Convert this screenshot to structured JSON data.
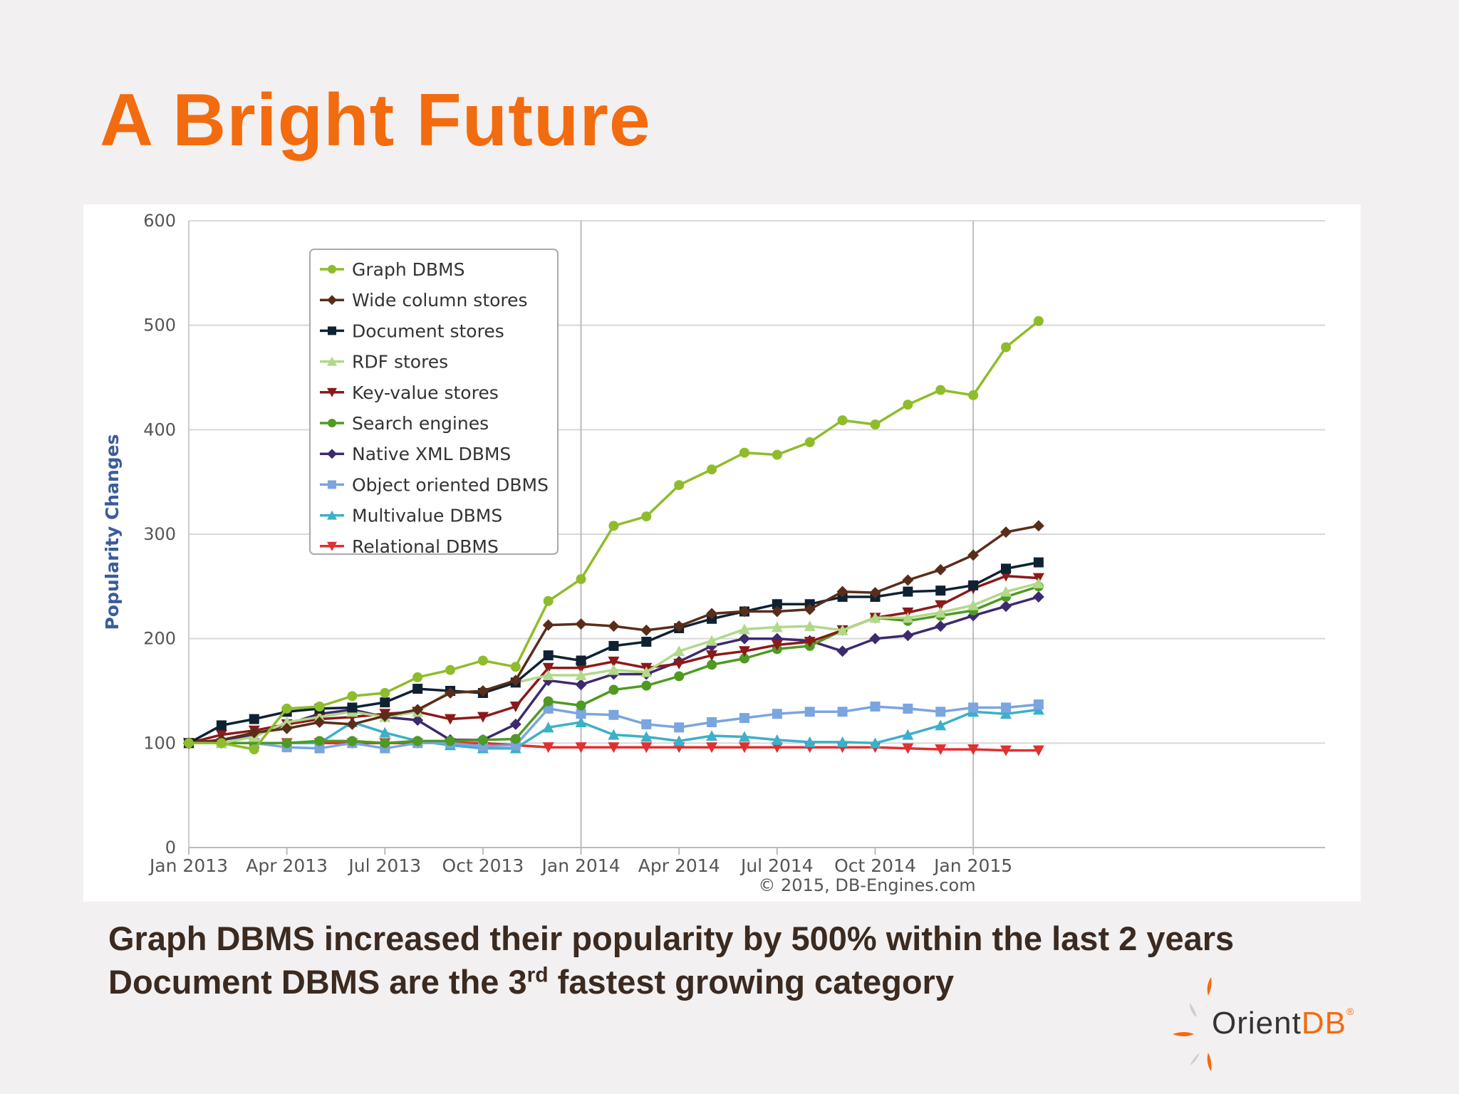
{
  "title": "A Bright Future",
  "captions": {
    "line1": "Graph DBMS increased their popularity by 500% within the last 2 years",
    "line2_before": "Document DBMS are the 3",
    "line2_sup": "rd",
    "line2_after": " fastest growing category"
  },
  "logo": {
    "text_main": "Orient",
    "text_accent": "DB",
    "mark": "®"
  },
  "chart_data": {
    "type": "line",
    "ylabel": "Popularity Changes",
    "ylim": [
      0,
      600
    ],
    "yticks": [
      0,
      100,
      200,
      300,
      400,
      500,
      600
    ],
    "xlim": [
      0,
      26
    ],
    "xtick_positions": [
      0,
      3,
      6,
      9,
      12,
      15,
      18,
      21,
      24
    ],
    "xtick_labels": [
      "Jan 2013",
      "Apr 2013",
      "Jul 2013",
      "Oct 2013",
      "Jan 2014",
      "Apr 2014",
      "Jul 2014",
      "Oct 2014",
      "Jan 2015"
    ],
    "gridlines_vertical_at": [
      12,
      24
    ],
    "credit": "© 2015, DB-Engines.com",
    "legend_position": "top-left",
    "x": [
      0,
      1,
      2,
      3,
      4,
      5,
      6,
      7,
      8,
      9,
      10,
      11,
      12,
      13,
      14,
      15,
      16,
      17,
      18,
      19,
      20,
      21,
      22,
      23,
      24,
      25,
      26
    ],
    "series": [
      {
        "name": "Graph DBMS",
        "color": "#8fbc2b",
        "marker": "circle",
        "values": [
          100,
          100,
          94,
          133,
          135,
          145,
          148,
          163,
          170,
          179,
          173,
          236,
          257,
          308,
          317,
          347,
          362,
          378,
          376,
          388,
          409,
          405,
          424,
          438,
          433,
          479,
          504
        ]
      },
      {
        "name": "Wide column stores",
        "color": "#5a2d1a",
        "marker": "diamond",
        "values": [
          100,
          103,
          110,
          114,
          120,
          118,
          126,
          132,
          148,
          150,
          160,
          213,
          214,
          212,
          208,
          212,
          224,
          226,
          226,
          228,
          245,
          244,
          256,
          266,
          280,
          302,
          308
        ]
      },
      {
        "name": "Document stores",
        "color": "#0f2233",
        "marker": "square",
        "values": [
          100,
          117,
          123,
          130,
          133,
          134,
          139,
          152,
          150,
          148,
          158,
          184,
          179,
          193,
          197,
          210,
          219,
          226,
          233,
          233,
          240,
          240,
          245,
          246,
          251,
          267,
          273
        ]
      },
      {
        "name": "RDF stores",
        "color": "#b2d889",
        "marker": "triangle",
        "values": [
          100,
          100,
          106,
          120,
          125,
          130,
          125,
          130,
          150,
          148,
          158,
          165,
          165,
          170,
          168,
          188,
          198,
          209,
          211,
          212,
          208,
          220,
          220,
          225,
          232,
          245,
          253
        ]
      },
      {
        "name": "Key-value stores",
        "color": "#8b1a1a",
        "marker": "triangle-down",
        "values": [
          100,
          108,
          112,
          118,
          123,
          125,
          128,
          130,
          123,
          125,
          135,
          172,
          172,
          178,
          172,
          176,
          184,
          188,
          194,
          197,
          208,
          220,
          225,
          232,
          248,
          260,
          258
        ]
      },
      {
        "name": "Search engines",
        "color": "#4e9a22",
        "marker": "circle",
        "values": [
          100,
          100,
          100,
          100,
          102,
          102,
          100,
          102,
          102,
          103,
          104,
          140,
          136,
          151,
          155,
          164,
          175,
          181,
          190,
          193,
          208,
          220,
          217,
          222,
          227,
          240,
          250
        ]
      },
      {
        "name": "Native XML DBMS",
        "color": "#3d2a6e",
        "marker": "diamond",
        "values": [
          100,
          103,
          108,
          118,
          128,
          132,
          125,
          122,
          103,
          103,
          118,
          160,
          156,
          166,
          166,
          178,
          193,
          200,
          200,
          198,
          188,
          200,
          203,
          212,
          222,
          231,
          240
        ]
      },
      {
        "name": "Object oriented DBMS",
        "color": "#7aa5e0",
        "marker": "square",
        "values": [
          100,
          100,
          100,
          96,
          95,
          100,
          95,
          100,
          100,
          97,
          98,
          133,
          128,
          127,
          118,
          115,
          120,
          124,
          128,
          130,
          130,
          135,
          133,
          130,
          134,
          134,
          137
        ]
      },
      {
        "name": "Multivalue DBMS",
        "color": "#3cb0c9",
        "marker": "triangle",
        "values": [
          100,
          100,
          100,
          100,
          100,
          120,
          110,
          102,
          98,
          95,
          95,
          115,
          120,
          108,
          106,
          102,
          107,
          106,
          103,
          101,
          101,
          100,
          108,
          117,
          130,
          128,
          132
        ]
      },
      {
        "name": "Relational DBMS",
        "color": "#e03030",
        "marker": "triangle-down",
        "values": [
          100,
          100,
          100,
          100,
          100,
          100,
          100,
          100,
          100,
          100,
          98,
          96,
          96,
          96,
          96,
          96,
          96,
          96,
          96,
          96,
          96,
          96,
          95,
          94,
          94,
          93,
          93
        ]
      }
    ]
  }
}
